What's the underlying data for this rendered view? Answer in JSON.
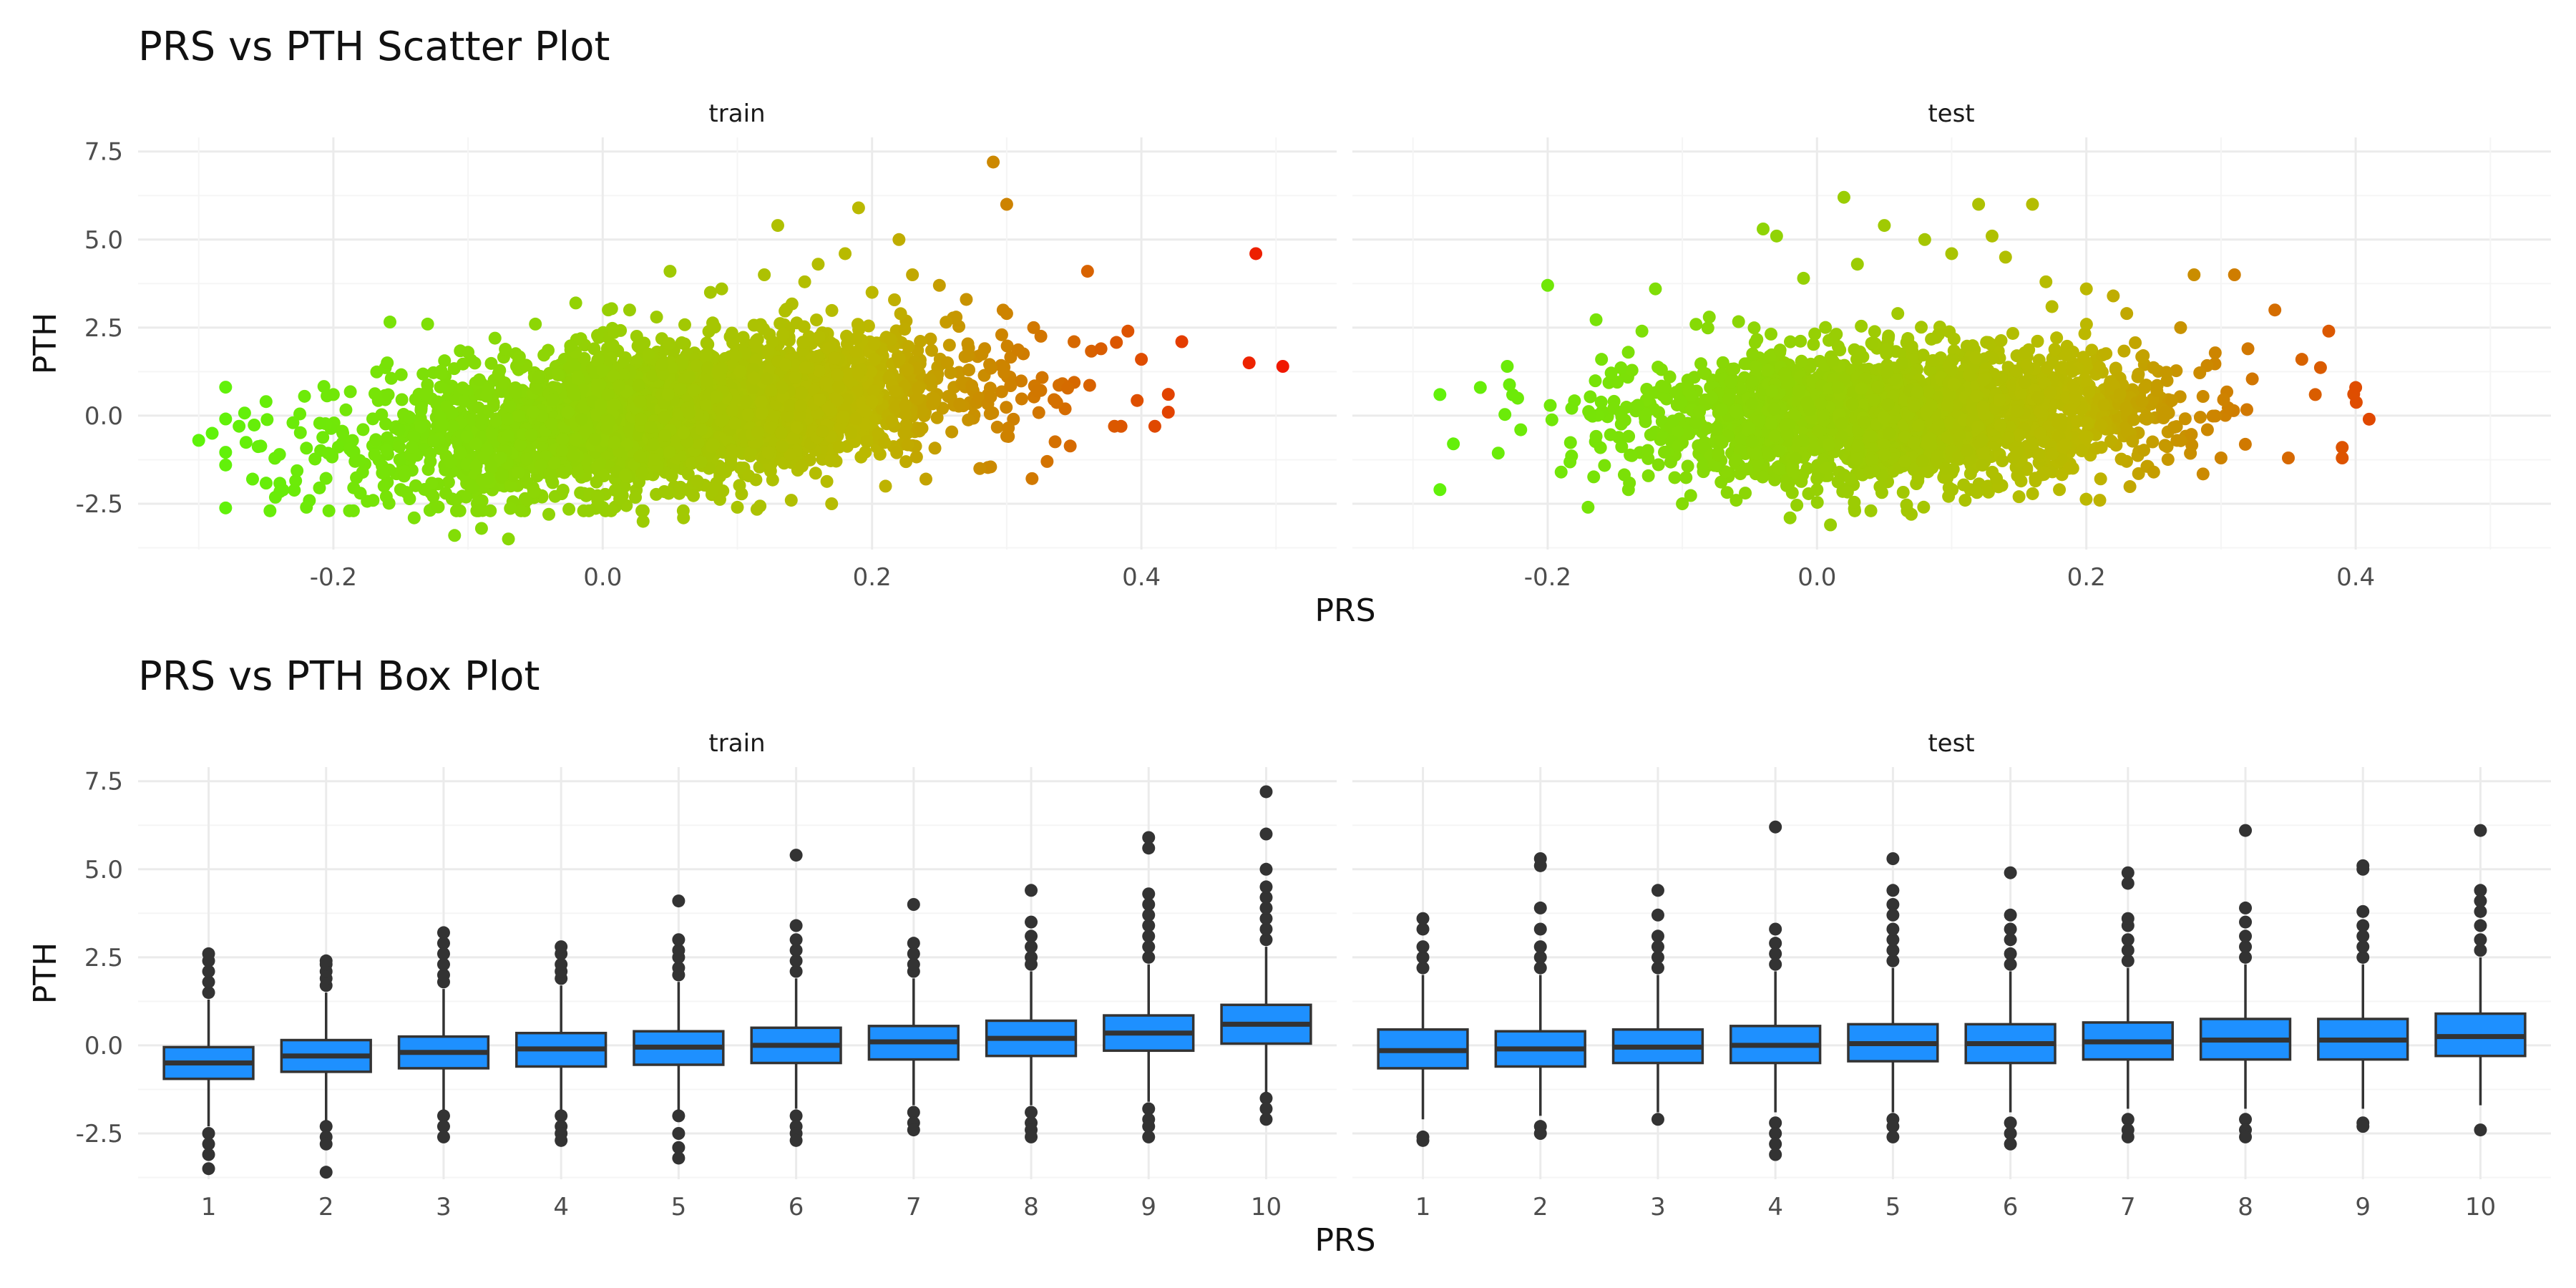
{
  "chart_data": [
    {
      "type": "scatter",
      "title": "PRS vs PTH Scatter Plot",
      "xlabel": "PRS",
      "ylabel": "PTH",
      "xlim": [
        -0.345,
        0.545
      ],
      "ylim": [
        -3.8,
        7.9
      ],
      "xticks": [
        -0.2,
        0.0,
        0.2,
        0.4
      ],
      "xtick_labels": [
        "-0.2",
        "0.0",
        "0.2",
        "0.4"
      ],
      "yticks": [
        -2.5,
        0.0,
        2.5,
        5.0,
        7.5
      ],
      "ytick_labels": [
        "-2.5",
        "0.0",
        "2.5",
        "5.0",
        "7.5"
      ],
      "color_scale": {
        "low": "#5ef30a",
        "mid": "#bcb800",
        "high": "#f01800",
        "domain": [
          -0.3,
          0.2,
          0.5
        ]
      },
      "grid": true,
      "facets": [
        {
          "name": "train",
          "points": [
            [
              -0.3,
              -0.7
            ],
            [
              -0.29,
              -0.5
            ],
            [
              -0.28,
              -1.4
            ],
            [
              -0.27,
              -0.3
            ],
            [
              -0.26,
              -1.8
            ],
            [
              -0.25,
              0.4
            ],
            [
              -0.24,
              -1.1
            ],
            [
              -0.23,
              -0.2
            ],
            [
              -0.22,
              -2.6
            ],
            [
              -0.2,
              0.6
            ],
            [
              -0.18,
              -2.2
            ],
            [
              -0.16,
              1.5
            ],
            [
              -0.14,
              -2.9
            ],
            [
              -0.13,
              2.6
            ],
            [
              -0.12,
              1.2
            ],
            [
              -0.11,
              -3.4
            ],
            [
              -0.1,
              1.8
            ],
            [
              -0.09,
              -3.2
            ],
            [
              -0.08,
              2.2
            ],
            [
              -0.07,
              -3.5
            ],
            [
              -0.05,
              2.6
            ],
            [
              -0.04,
              -2.8
            ],
            [
              -0.02,
              3.2
            ],
            [
              0.0,
              -2.6
            ],
            [
              0.02,
              3.0
            ],
            [
              0.03,
              -3.0
            ],
            [
              0.04,
              2.8
            ],
            [
              0.05,
              4.1
            ],
            [
              0.06,
              -2.9
            ],
            [
              0.08,
              3.5
            ],
            [
              0.1,
              -2.6
            ],
            [
              0.12,
              4.0
            ],
            [
              0.13,
              5.4
            ],
            [
              0.14,
              -2.4
            ],
            [
              0.15,
              3.8
            ],
            [
              0.16,
              4.3
            ],
            [
              0.17,
              -2.5
            ],
            [
              0.18,
              4.6
            ],
            [
              0.19,
              5.9
            ],
            [
              0.2,
              3.5
            ],
            [
              0.21,
              -2.0
            ],
            [
              0.22,
              5.0
            ],
            [
              0.23,
              4.0
            ],
            [
              0.24,
              -1.8
            ],
            [
              0.25,
              3.7
            ],
            [
              0.27,
              3.3
            ],
            [
              0.28,
              -1.5
            ],
            [
              0.29,
              7.2
            ],
            [
              0.3,
              2.9
            ],
            [
              0.3,
              6.0
            ],
            [
              0.32,
              2.5
            ],
            [
              0.33,
              -1.3
            ],
            [
              0.35,
              2.1
            ],
            [
              0.36,
              4.1
            ],
            [
              0.37,
              1.9
            ],
            [
              0.38,
              -0.3
            ],
            [
              0.39,
              2.4
            ],
            [
              0.4,
              1.6
            ],
            [
              0.41,
              -0.3
            ],
            [
              0.42,
              0.1
            ],
            [
              0.43,
              2.1
            ],
            [
              0.48,
              1.5
            ],
            [
              0.485,
              4.6
            ],
            [
              0.505,
              1.4
            ]
          ]
        },
        {
          "name": "test",
          "points": [
            [
              -0.28,
              0.6
            ],
            [
              -0.28,
              -2.1
            ],
            [
              -0.27,
              -0.8
            ],
            [
              -0.25,
              0.8
            ],
            [
              -0.23,
              1.4
            ],
            [
              -0.22,
              -0.4
            ],
            [
              -0.2,
              3.7
            ],
            [
              -0.19,
              -1.6
            ],
            [
              -0.17,
              -2.6
            ],
            [
              -0.16,
              1.6
            ],
            [
              -0.14,
              -2.1
            ],
            [
              -0.13,
              2.4
            ],
            [
              -0.12,
              3.6
            ],
            [
              -0.1,
              -2.5
            ],
            [
              -0.08,
              2.8
            ],
            [
              -0.06,
              -2.4
            ],
            [
              -0.04,
              5.3
            ],
            [
              -0.03,
              5.1
            ],
            [
              -0.02,
              -2.9
            ],
            [
              -0.01,
              3.9
            ],
            [
              0.0,
              -2.1
            ],
            [
              0.01,
              -3.1
            ],
            [
              0.02,
              6.2
            ],
            [
              0.03,
              4.3
            ],
            [
              0.04,
              -2.7
            ],
            [
              0.05,
              5.4
            ],
            [
              0.06,
              2.9
            ],
            [
              0.07,
              -2.8
            ],
            [
              0.08,
              5.0
            ],
            [
              0.1,
              4.6
            ],
            [
              0.11,
              -2.4
            ],
            [
              0.12,
              6.0
            ],
            [
              0.13,
              5.1
            ],
            [
              0.14,
              4.5
            ],
            [
              0.15,
              -2.3
            ],
            [
              0.16,
              6.0
            ],
            [
              0.17,
              3.8
            ],
            [
              0.18,
              -2.1
            ],
            [
              0.2,
              3.6
            ],
            [
              0.21,
              -2.4
            ],
            [
              0.22,
              3.4
            ],
            [
              0.23,
              2.9
            ],
            [
              0.25,
              -1.6
            ],
            [
              0.27,
              2.5
            ],
            [
              0.28,
              4.0
            ],
            [
              0.3,
              -1.2
            ],
            [
              0.31,
              4.0
            ],
            [
              0.32,
              1.9
            ],
            [
              0.34,
              3.0
            ],
            [
              0.35,
              -1.2
            ],
            [
              0.36,
              1.6
            ],
            [
              0.37,
              0.6
            ],
            [
              0.38,
              2.4
            ],
            [
              0.39,
              -1.2
            ],
            [
              0.39,
              -0.9
            ],
            [
              0.4,
              0.8
            ],
            [
              0.41,
              -0.1
            ]
          ]
        }
      ]
    },
    {
      "type": "box",
      "title": "PRS vs PTH Box Plot",
      "xlabel": "PRS",
      "ylabel": "PTH",
      "categories": [
        "1",
        "2",
        "3",
        "4",
        "5",
        "6",
        "7",
        "8",
        "9",
        "10"
      ],
      "ylim": [
        -3.8,
        7.9
      ],
      "yticks": [
        -2.5,
        0.0,
        2.5,
        5.0,
        7.5
      ],
      "ytick_labels": [
        "-2.5",
        "0.0",
        "2.5",
        "5.0",
        "7.5"
      ],
      "box_fill": "#1e90ff",
      "box_stroke": "#333333",
      "grid": true,
      "facets": [
        {
          "name": "train",
          "boxes": [
            {
              "q1": -0.95,
              "median": -0.5,
              "q3": -0.05,
              "lower": -2.3,
              "upper": 1.3,
              "outliers": [
                1.5,
                1.8,
                2.1,
                2.4,
                2.6,
                -2.5,
                -2.8,
                -3.1,
                -3.5
              ]
            },
            {
              "q1": -0.75,
              "median": -0.3,
              "q3": 0.15,
              "lower": -2.2,
              "upper": 1.5,
              "outliers": [
                1.7,
                1.9,
                2.1,
                2.3,
                2.4,
                -2.3,
                -2.6,
                -2.8,
                -3.6
              ]
            },
            {
              "q1": -0.65,
              "median": -0.2,
              "q3": 0.25,
              "lower": -1.9,
              "upper": 1.6,
              "outliers": [
                1.8,
                2.0,
                2.3,
                2.6,
                2.9,
                3.2,
                -2.0,
                -2.3,
                -2.6
              ]
            },
            {
              "q1": -0.6,
              "median": -0.1,
              "q3": 0.35,
              "lower": -1.9,
              "upper": 1.7,
              "outliers": [
                1.9,
                2.1,
                2.3,
                2.6,
                2.8,
                -2.0,
                -2.3,
                -2.5,
                -2.7
              ]
            },
            {
              "q1": -0.55,
              "median": -0.05,
              "q3": 0.4,
              "lower": -1.9,
              "upper": 1.8,
              "outliers": [
                2.0,
                2.2,
                2.5,
                2.7,
                3.0,
                4.1,
                -2.0,
                -2.5,
                -2.9,
                -3.2
              ]
            },
            {
              "q1": -0.5,
              "median": 0.0,
              "q3": 0.5,
              "lower": -1.8,
              "upper": 1.9,
              "outliers": [
                2.1,
                2.4,
                2.7,
                3.0,
                3.4,
                5.4,
                -2.0,
                -2.3,
                -2.5,
                -2.7
              ]
            },
            {
              "q1": -0.4,
              "median": 0.1,
              "q3": 0.55,
              "lower": -1.7,
              "upper": 1.9,
              "outliers": [
                2.1,
                2.3,
                2.6,
                2.9,
                4.0,
                -1.9,
                -2.2,
                -2.4
              ]
            },
            {
              "q1": -0.3,
              "median": 0.2,
              "q3": 0.7,
              "lower": -1.7,
              "upper": 2.1,
              "outliers": [
                2.3,
                2.5,
                2.8,
                3.1,
                3.5,
                4.4,
                -1.9,
                -2.2,
                -2.4,
                -2.6
              ]
            },
            {
              "q1": -0.15,
              "median": 0.35,
              "q3": 0.85,
              "lower": -1.6,
              "upper": 2.3,
              "outliers": [
                2.5,
                2.8,
                3.1,
                3.4,
                3.7,
                4.0,
                4.3,
                5.6,
                5.9,
                -1.8,
                -2.1,
                -2.3,
                -2.6
              ]
            },
            {
              "q1": 0.05,
              "median": 0.6,
              "q3": 1.15,
              "lower": -1.4,
              "upper": 2.8,
              "outliers": [
                3.0,
                3.3,
                3.6,
                3.9,
                4.2,
                4.5,
                5.0,
                6.0,
                7.2,
                -1.5,
                -1.8,
                -2.1
              ]
            }
          ]
        },
        {
          "name": "test",
          "boxes": [
            {
              "q1": -0.65,
              "median": -0.15,
              "q3": 0.45,
              "lower": -2.1,
              "upper": 2.0,
              "outliers": [
                2.2,
                2.5,
                2.8,
                3.3,
                3.6,
                -2.6,
                -2.7
              ]
            },
            {
              "q1": -0.6,
              "median": -0.1,
              "q3": 0.4,
              "lower": -2.0,
              "upper": 2.0,
              "outliers": [
                2.2,
                2.5,
                2.8,
                3.3,
                3.9,
                5.1,
                5.3,
                -2.3,
                -2.5
              ]
            },
            {
              "q1": -0.5,
              "median": -0.05,
              "q3": 0.45,
              "lower": -1.9,
              "upper": 2.0,
              "outliers": [
                2.2,
                2.5,
                2.8,
                3.1,
                3.7,
                4.4,
                -2.1
              ]
            },
            {
              "q1": -0.5,
              "median": 0.0,
              "q3": 0.55,
              "lower": -1.9,
              "upper": 2.1,
              "outliers": [
                2.3,
                2.6,
                2.9,
                3.3,
                6.2,
                -2.2,
                -2.5,
                -2.8,
                -3.1
              ]
            },
            {
              "q1": -0.45,
              "median": 0.05,
              "q3": 0.6,
              "lower": -1.9,
              "upper": 2.2,
              "outliers": [
                2.4,
                2.7,
                3.0,
                3.3,
                3.7,
                4.0,
                4.4,
                5.3,
                -2.1,
                -2.3,
                -2.6
              ]
            },
            {
              "q1": -0.5,
              "median": 0.05,
              "q3": 0.6,
              "lower": -1.9,
              "upper": 2.1,
              "outliers": [
                2.3,
                2.6,
                3.0,
                3.3,
                3.7,
                4.9,
                -2.2,
                -2.5,
                -2.8
              ]
            },
            {
              "q1": -0.4,
              "median": 0.1,
              "q3": 0.65,
              "lower": -1.8,
              "upper": 2.2,
              "outliers": [
                2.4,
                2.7,
                3.0,
                3.4,
                3.6,
                4.6,
                4.9,
                -2.1,
                -2.4,
                -2.6
              ]
            },
            {
              "q1": -0.4,
              "median": 0.15,
              "q3": 0.75,
              "lower": -1.8,
              "upper": 2.3,
              "outliers": [
                2.5,
                2.8,
                3.1,
                3.5,
                3.9,
                6.1,
                -2.1,
                -2.4,
                -2.6
              ]
            },
            {
              "q1": -0.4,
              "median": 0.15,
              "q3": 0.75,
              "lower": -1.8,
              "upper": 2.3,
              "outliers": [
                2.5,
                2.8,
                3.1,
                3.4,
                3.8,
                5.0,
                5.1,
                -2.2,
                -2.3
              ]
            },
            {
              "q1": -0.3,
              "median": 0.25,
              "q3": 0.9,
              "lower": -1.7,
              "upper": 2.5,
              "outliers": [
                2.7,
                3.0,
                3.4,
                3.8,
                4.1,
                4.4,
                6.1,
                -2.4
              ]
            }
          ]
        }
      ]
    }
  ]
}
